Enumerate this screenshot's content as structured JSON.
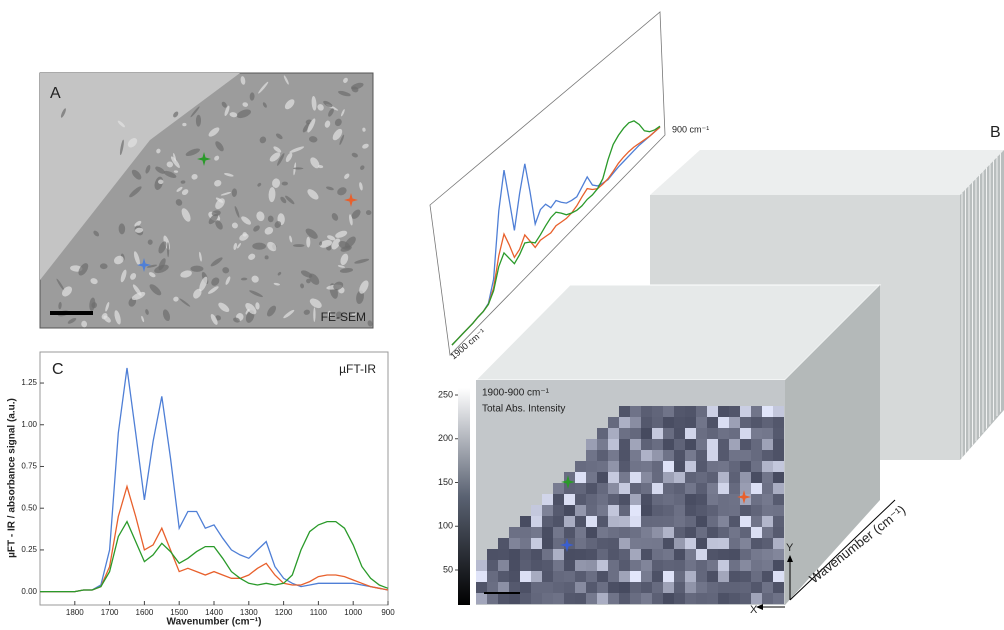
{
  "panel_a": {
    "label": "A",
    "caption": "FE-SEM"
  },
  "panel_b": {
    "label": "B",
    "map_title": "1900-900 cm⁻¹",
    "map_subtitle": "Total Abs. Intensity",
    "colorbar": {
      "lim": [
        10,
        258
      ],
      "ticks": [
        50,
        100,
        150,
        200,
        250
      ]
    },
    "axis_label": "Wavenumber (cm⁻¹)",
    "x_label": "X",
    "y_label": "Y",
    "spectrum_start": "1900 cm⁻¹",
    "spectrum_end": "900 cm⁻¹"
  },
  "chart_data": {
    "type": "line",
    "label": "C",
    "title": "µFT-IR",
    "x_label": "Wavenumber (cm⁻¹)",
    "y_label": "µFT - IR / absorbance signal (a.u.)",
    "xlim": [
      1900,
      900
    ],
    "xticks": [
      1800,
      1700,
      1600,
      1500,
      1400,
      1300,
      1200,
      1100,
      1000,
      900
    ],
    "ylim": [
      -0.08,
      1.4
    ],
    "yticks": [
      {
        "value": 0,
        "label": "0.00"
      },
      {
        "value": 0.25,
        "label": "0.25"
      },
      {
        "value": 0.5,
        "label": "0.50"
      },
      {
        "value": 0.75,
        "label": "0.75"
      },
      {
        "value": 1,
        "label": "1.00"
      },
      {
        "value": 1.25,
        "label": "1.25"
      }
    ],
    "x": [
      1900,
      1875,
      1850,
      1825,
      1800,
      1775,
      1750,
      1725,
      1700,
      1675,
      1650,
      1625,
      1600,
      1575,
      1550,
      1525,
      1500,
      1475,
      1450,
      1425,
      1400,
      1375,
      1350,
      1325,
      1300,
      1275,
      1250,
      1225,
      1200,
      1175,
      1150,
      1125,
      1100,
      1075,
      1050,
      1025,
      1000,
      975,
      950,
      925,
      900
    ],
    "series": [
      {
        "color": "#4f7fd6",
        "values": [
          0,
          0,
          0,
          0,
          0,
          0.01,
          0.01,
          0.04,
          0.25,
          0.95,
          1.34,
          0.95,
          0.55,
          0.9,
          1.17,
          0.8,
          0.38,
          0.48,
          0.48,
          0.38,
          0.4,
          0.32,
          0.25,
          0.22,
          0.2,
          0.25,
          0.3,
          0.15,
          0.08,
          0.05,
          0.03,
          0.04,
          0.05,
          0.05,
          0.05,
          0.05,
          0.05,
          0.04,
          0.03,
          0.02,
          0.01
        ]
      },
      {
        "color": "#e8602c",
        "values": [
          0,
          0,
          0,
          0,
          0,
          0.01,
          0.01,
          0.03,
          0.15,
          0.45,
          0.63,
          0.45,
          0.25,
          0.28,
          0.38,
          0.25,
          0.12,
          0.14,
          0.12,
          0.1,
          0.12,
          0.1,
          0.08,
          0.08,
          0.1,
          0.14,
          0.17,
          0.1,
          0.05,
          0.04,
          0.04,
          0.06,
          0.09,
          0.1,
          0.1,
          0.09,
          0.07,
          0.05,
          0.03,
          0.02,
          0.01
        ]
      },
      {
        "color": "#2a9a2a",
        "values": [
          0,
          0,
          0,
          0,
          0,
          0.01,
          0.01,
          0.03,
          0.12,
          0.33,
          0.42,
          0.3,
          0.18,
          0.22,
          0.29,
          0.24,
          0.17,
          0.2,
          0.24,
          0.27,
          0.27,
          0.2,
          0.12,
          0.08,
          0.05,
          0.04,
          0.05,
          0.04,
          0.05,
          0.1,
          0.25,
          0.36,
          0.4,
          0.42,
          0.42,
          0.38,
          0.28,
          0.15,
          0.08,
          0.04,
          0.02
        ]
      }
    ]
  }
}
